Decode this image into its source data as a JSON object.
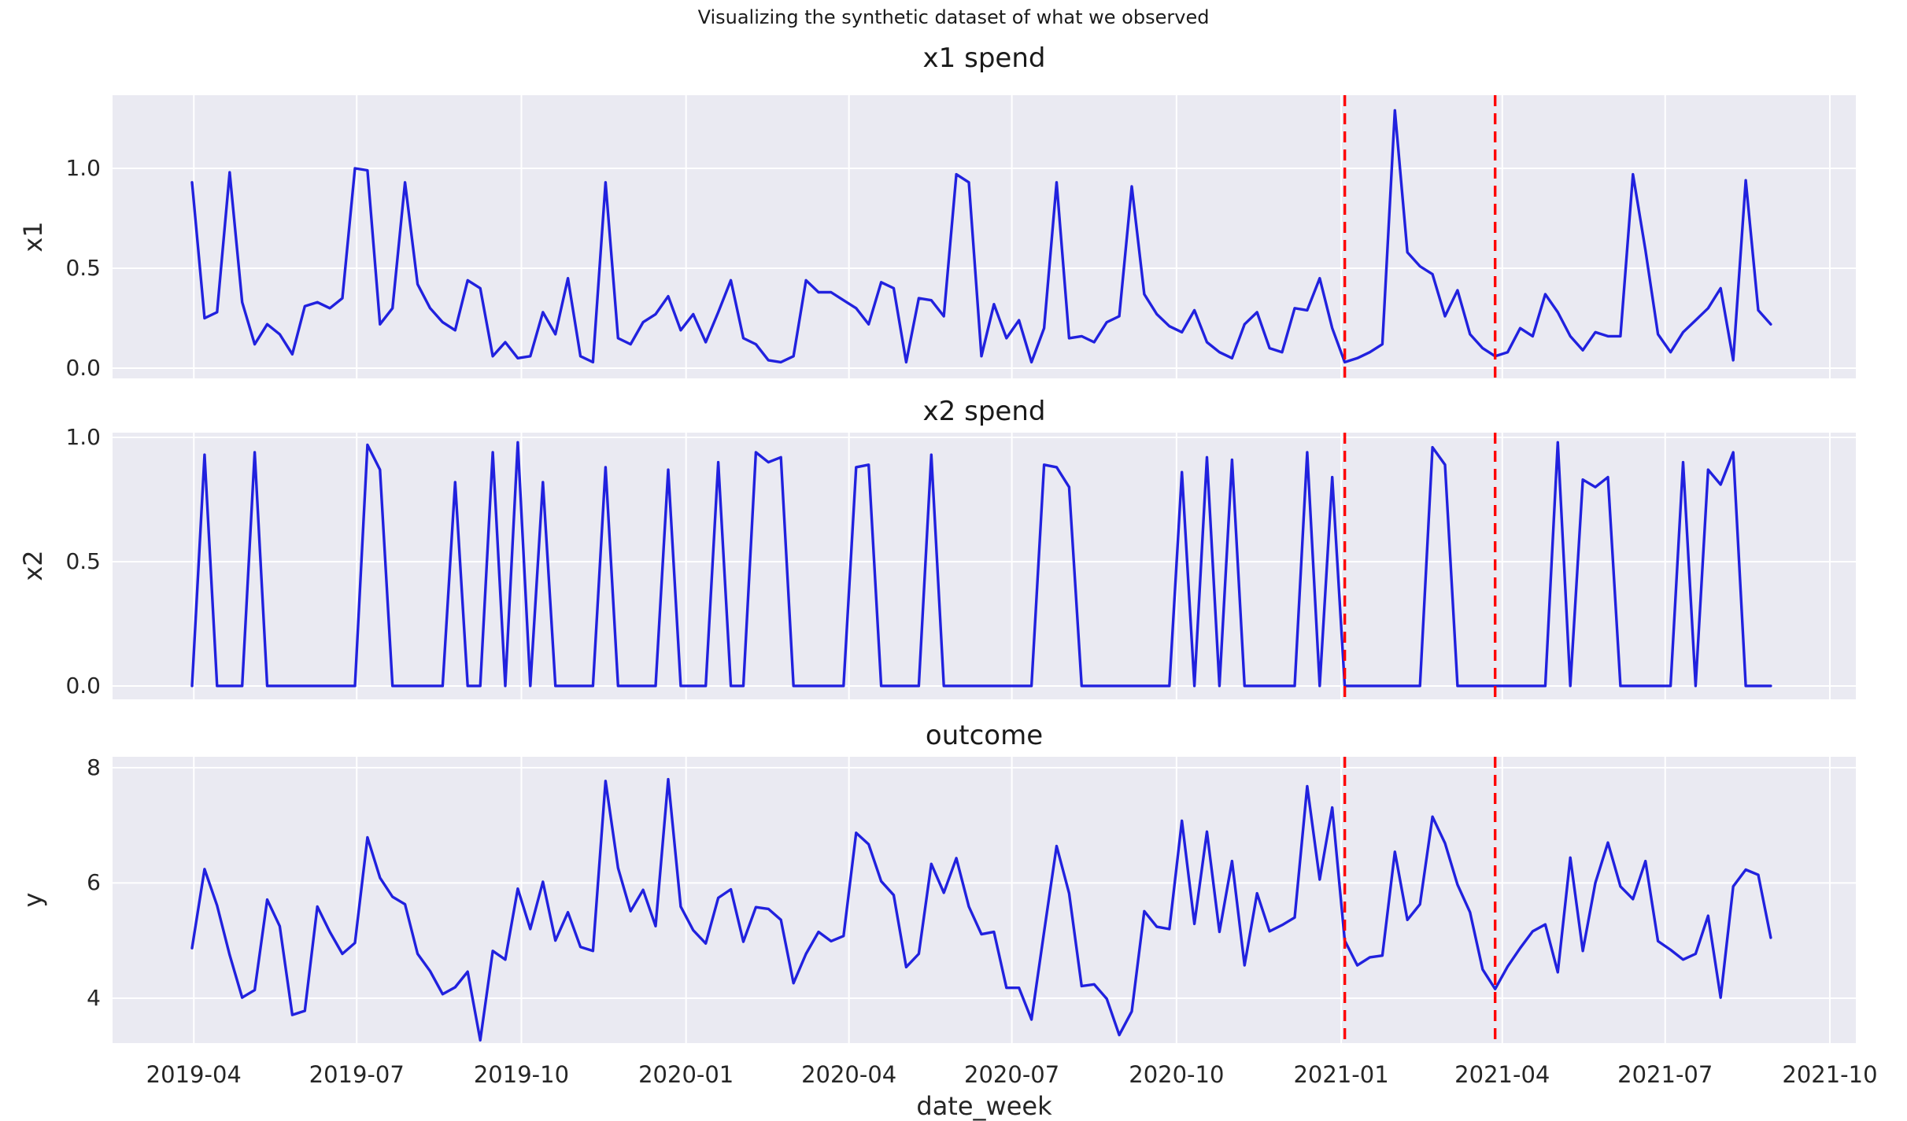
{
  "suptitle": "Visualizing the synthetic dataset of what we observed",
  "xlabel": "date_week",
  "chart_data": {
    "type": "line",
    "x": {
      "label": "date_week",
      "start_date": "2019-03-31",
      "interval_days": 7,
      "n_points": 127,
      "end_date": "2021-08-29",
      "tick_labels": [
        "2019-04",
        "2019-07",
        "2019-10",
        "2020-01",
        "2020-04",
        "2020-07",
        "2020-10",
        "2021-01",
        "2021-04",
        "2021-07",
        "2021-10"
      ]
    },
    "annotations": {
      "description": "red dashed vertical lines on all three panels",
      "vline_dates": [
        "2021-01-03",
        "2021-03-28"
      ],
      "vline_color": "#FF0000",
      "vline_style": "dashed"
    },
    "style": {
      "line_color": "#2121DE",
      "plot_bg": "#EAEAF2",
      "grid_color": "#FFFFFF",
      "figure_bg": "#FFFFFF",
      "text_color": "#262626",
      "grid": true,
      "legend": false
    },
    "panels": [
      {
        "title": "x1 spend",
        "ylabel": "x1",
        "ytick_values": [
          0.0,
          0.5,
          1.0
        ],
        "ytick_labels": [
          "0.0",
          "0.5",
          "1.0"
        ],
        "ylim": [
          -0.051,
          1.366
        ],
        "values": [
          0.93,
          0.25,
          0.28,
          0.98,
          0.33,
          0.12,
          0.22,
          0.17,
          0.07,
          0.31,
          0.33,
          0.3,
          0.35,
          1.0,
          0.99,
          0.22,
          0.3,
          0.93,
          0.42,
          0.3,
          0.23,
          0.19,
          0.44,
          0.4,
          0.06,
          0.13,
          0.05,
          0.06,
          0.28,
          0.17,
          0.45,
          0.06,
          0.03,
          0.93,
          0.15,
          0.12,
          0.23,
          0.27,
          0.36,
          0.19,
          0.27,
          0.13,
          0.28,
          0.44,
          0.15,
          0.12,
          0.04,
          0.03,
          0.06,
          0.44,
          0.38,
          0.38,
          0.34,
          0.3,
          0.22,
          0.43,
          0.4,
          0.03,
          0.35,
          0.34,
          0.26,
          0.97,
          0.93,
          0.06,
          0.32,
          0.15,
          0.24,
          0.03,
          0.2,
          0.93,
          0.15,
          0.16,
          0.13,
          0.23,
          0.26,
          0.91,
          0.37,
          0.27,
          0.21,
          0.18,
          0.29,
          0.13,
          0.08,
          0.05,
          0.22,
          0.28,
          0.1,
          0.08,
          0.3,
          0.29,
          0.45,
          0.2,
          0.03,
          0.05,
          0.08,
          0.12,
          1.29,
          0.58,
          0.51,
          0.47,
          0.26,
          0.39,
          0.17,
          0.1,
          0.06,
          0.08,
          0.2,
          0.16,
          0.37,
          0.28,
          0.16,
          0.09,
          0.18,
          0.16,
          0.16,
          0.97,
          0.59,
          0.17,
          0.08,
          0.18,
          0.24,
          0.3,
          0.4,
          0.04,
          0.94,
          0.29,
          0.22
        ]
      },
      {
        "title": "x2 spend",
        "ylabel": "x2",
        "ytick_values": [
          0.0,
          0.5,
          1.0
        ],
        "ytick_labels": [
          "0.0",
          "0.5",
          "1.0"
        ],
        "ylim": [
          -0.054,
          1.019
        ],
        "values": [
          0,
          0.93,
          0,
          0,
          0,
          0.94,
          0,
          0,
          0,
          0,
          0,
          0,
          0,
          0,
          0.97,
          0.87,
          0,
          0,
          0,
          0,
          0,
          0.82,
          0,
          0,
          0.94,
          0,
          0.98,
          0,
          0.82,
          0,
          0,
          0,
          0,
          0.88,
          0,
          0,
          0,
          0,
          0.87,
          0,
          0,
          0,
          0.9,
          0,
          0,
          0.94,
          0.9,
          0.92,
          0,
          0,
          0,
          0,
          0,
          0.88,
          0.89,
          0,
          0,
          0,
          0,
          0.93,
          0,
          0,
          0,
          0,
          0,
          0,
          0,
          0,
          0.89,
          0.88,
          0.8,
          0,
          0,
          0,
          0,
          0,
          0,
          0,
          0,
          0.86,
          0,
          0.92,
          0,
          0.91,
          0,
          0,
          0,
          0,
          0,
          0.94,
          0,
          0.84,
          0,
          0,
          0,
          0,
          0,
          0,
          0,
          0.96,
          0.89,
          0,
          0,
          0,
          0,
          0,
          0,
          0,
          0,
          0.98,
          0,
          0.83,
          0.8,
          0.84,
          0,
          0,
          0,
          0,
          0,
          0.9,
          0,
          0.87,
          0.81,
          0.94,
          0,
          0,
          0
        ]
      },
      {
        "title": "outcome",
        "ylabel": "y",
        "ytick_values": [
          4,
          6,
          8
        ],
        "ytick_labels": [
          "4",
          "6",
          "8"
        ],
        "ylim": [
          3.22,
          8.19
        ],
        "values": [
          4.87,
          6.24,
          5.61,
          4.75,
          4.01,
          4.14,
          5.71,
          5.25,
          3.71,
          3.78,
          5.59,
          5.15,
          4.77,
          4.96,
          6.79,
          6.09,
          5.76,
          5.63,
          4.77,
          4.47,
          4.07,
          4.19,
          4.46,
          3.27,
          4.82,
          4.67,
          5.9,
          5.2,
          6.02,
          5.0,
          5.49,
          4.89,
          4.82,
          7.77,
          6.26,
          5.51,
          5.88,
          5.25,
          7.8,
          5.59,
          5.18,
          4.95,
          5.74,
          5.89,
          4.98,
          5.58,
          5.55,
          5.36,
          4.26,
          4.77,
          5.15,
          4.99,
          5.08,
          6.87,
          6.67,
          6.03,
          5.79,
          4.54,
          4.77,
          6.33,
          5.83,
          6.43,
          5.59,
          5.11,
          5.15,
          4.18,
          4.18,
          3.63,
          5.15,
          6.64,
          5.82,
          4.21,
          4.24,
          3.99,
          3.36,
          3.77,
          5.51,
          5.24,
          5.2,
          7.08,
          5.29,
          6.89,
          5.15,
          6.38,
          4.57,
          5.82,
          5.16,
          5.27,
          5.4,
          7.68,
          6.06,
          7.31,
          5.0,
          4.57,
          4.71,
          4.74,
          6.54,
          5.36,
          5.63,
          7.15,
          6.69,
          5.97,
          5.49,
          4.5,
          4.16,
          4.55,
          4.87,
          5.16,
          5.28,
          4.45,
          6.44,
          4.82,
          6.0,
          6.7,
          5.94,
          5.72,
          6.38,
          4.99,
          4.84,
          4.67,
          4.77,
          5.43,
          4.01,
          5.94,
          6.23,
          6.14,
          5.05
        ]
      }
    ]
  }
}
